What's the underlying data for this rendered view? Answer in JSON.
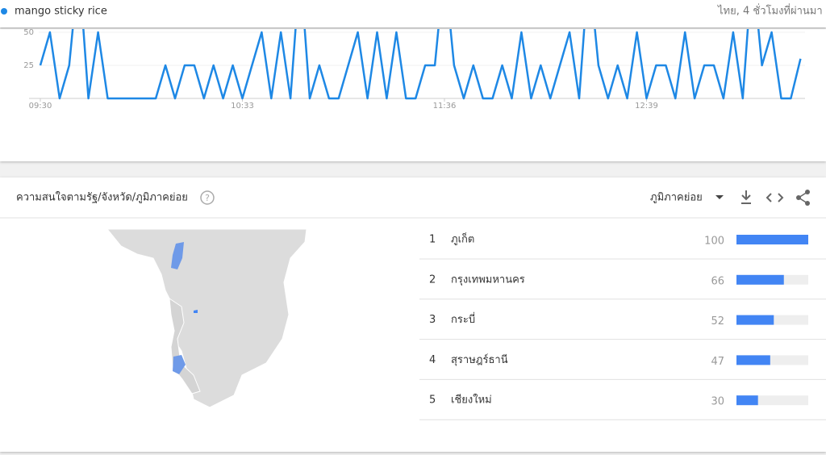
{
  "header": {
    "term": "mango sticky rice",
    "meta": "ไทย, 4 ชั่วโมงที่ผ่านมา"
  },
  "chart_data": {
    "type": "line",
    "color": "#1e88e5",
    "categories": [
      "09:30",
      null,
      null,
      null,
      null,
      null,
      null,
      null,
      null,
      null,
      null,
      null,
      null,
      null,
      null,
      null,
      null,
      null,
      null,
      null,
      null,
      "10:33",
      null,
      null,
      null,
      null,
      null,
      null,
      null,
      null,
      null,
      null,
      null,
      null,
      null,
      null,
      null,
      null,
      null,
      null,
      null,
      null,
      "11:36",
      null,
      null,
      null,
      null,
      null,
      null,
      null,
      null,
      null,
      null,
      null,
      null,
      null,
      null,
      null,
      null,
      null,
      null,
      null,
      null,
      "12:39",
      null,
      null,
      null,
      null,
      null,
      null,
      null,
      null,
      null,
      null,
      null,
      null,
      null,
      null,
      null,
      null
    ],
    "values": [
      25,
      50,
      0,
      25,
      100,
      0,
      50,
      0,
      0,
      0,
      0,
      0,
      0,
      25,
      0,
      25,
      25,
      0,
      25,
      0,
      25,
      0,
      25,
      50,
      0,
      50,
      0,
      100,
      0,
      25,
      0,
      0,
      25,
      50,
      0,
      50,
      0,
      50,
      0,
      0,
      25,
      25,
      100,
      25,
      0,
      25,
      0,
      0,
      25,
      0,
      50,
      0,
      25,
      0,
      25,
      50,
      0,
      100,
      25,
      0,
      25,
      0,
      50,
      0,
      25,
      25,
      0,
      50,
      0,
      25,
      25,
      0,
      50,
      0,
      100,
      25,
      50,
      0,
      0,
      30
    ],
    "ylim": [
      0,
      100
    ],
    "yticks": [
      25,
      50
    ]
  },
  "region": {
    "title": "ความสนใจตามรัฐ/จังหวัด/ภูมิภาคย่อย",
    "dropdown": "ภูมิภาคย่อย",
    "rows": [
      {
        "rank": 1,
        "name": "ภูเก็ต",
        "value": 100
      },
      {
        "rank": 2,
        "name": "กรุงเทพมหานคร",
        "value": 66
      },
      {
        "rank": 3,
        "name": "กระบี่",
        "value": 52
      },
      {
        "rank": 4,
        "name": "สุราษฎร์ธานี",
        "value": 47
      },
      {
        "rank": 5,
        "name": "เชียงใหม่",
        "value": 30
      }
    ]
  }
}
